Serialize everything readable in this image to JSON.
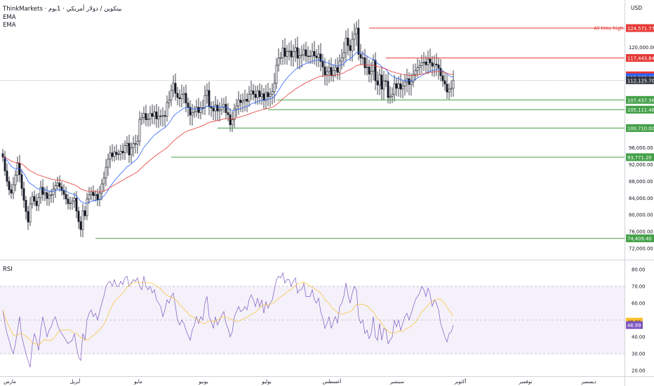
{
  "header": {
    "title": "ThinkMarkets · بيتكوين / دولار أمريكي · 1يوم",
    "ema1_label": "EMA",
    "ema2_label": "EMA",
    "currency": "USD"
  },
  "rsi_panel": {
    "label": "RSI"
  },
  "colors": {
    "up": "#131722",
    "down": "#131722",
    "ema_fast": "#2962ff",
    "ema_slow": "#e53935",
    "support": "#43a047",
    "resistance": "#e53935",
    "rsi_line": "#7e57c2",
    "rsi_ma": "#fbc02d",
    "rsi_band": "#ede7f6"
  },
  "chart_data": [
    {
      "type": "candlestick",
      "title": "ThinkMarkets · بيتكوين / دولار أمريكي · 1يوم",
      "ylim": [
        72000,
        130000
      ],
      "price_ticks": [
        72000,
        76000,
        80000,
        84000,
        88000,
        92000,
        96000,
        120000
      ],
      "price_tick_labels": [
        "72,000.00",
        "76,000.00",
        "80,000.00",
        "84,000.00",
        "88,000.00",
        "92,000.00",
        "96,000.00",
        "120,000.00"
      ],
      "month_labels": [
        "مارس",
        "أبريل",
        "مايو",
        "يونيو",
        "يوليو",
        "أغسطس",
        "سبتمبر",
        "أكتوبر",
        "نوفمبر",
        "ديسمبر"
      ],
      "month_positions": [
        0,
        31,
        61,
        92,
        122,
        153,
        184,
        214,
        245,
        275
      ],
      "grid": false,
      "closes": [
        93800,
        90500,
        88000,
        86000,
        85200,
        87200,
        89500,
        92300,
        89600,
        86300,
        83500,
        80800,
        78300,
        82600,
        84400,
        83300,
        82200,
        84100,
        86600,
        84900,
        85300,
        83900,
        84700,
        84800,
        86100,
        87000,
        87600,
        86700,
        85800,
        84900,
        83800,
        82700,
        82800,
        83300,
        84000,
        80900,
        78400,
        76500,
        81000,
        79800,
        83800,
        84800,
        85400,
        84600,
        84900,
        83600,
        85200,
        87400,
        88800,
        91400,
        93300,
        94800,
        93900,
        95000,
        94400,
        94500,
        95200,
        94800,
        96500,
        97100,
        94300,
        96000,
        97000,
        96900,
        97600,
        102800,
        103200,
        104200,
        102700,
        102900,
        104200,
        103500,
        104600,
        102900,
        103600,
        103500,
        103700,
        103500,
        106800,
        107400,
        109700,
        111400,
        109000,
        108000,
        107700,
        108700,
        109000,
        106700,
        105700,
        103800,
        104400,
        104700,
        105700,
        104400,
        105600,
        105600,
        108500,
        109700,
        105800,
        105500,
        104800,
        106200,
        104800,
        105100,
        105700,
        106400,
        104400,
        103900,
        101500,
        102700,
        105300,
        106000,
        107400,
        106800,
        107200,
        107600,
        107100,
        108800,
        109600,
        108800,
        108000,
        109600,
        108200,
        108900,
        107300,
        109200,
        108200,
        108800,
        109400,
        111400,
        115700,
        117500,
        117500,
        119800,
        117800,
        119000,
        119100,
        117700,
        119000,
        119900,
        117400,
        118000,
        118200,
        119400,
        117900,
        117800,
        117900,
        119000,
        117900,
        117500,
        118400,
        116600,
        115300,
        113400,
        114200,
        115200,
        113200,
        114400,
        115200,
        114000,
        116700,
        117500,
        118700,
        122200,
        120400,
        119200,
        121900,
        123200,
        124571,
        118300,
        117400,
        117500,
        115100,
        115300,
        113600,
        114300,
        116900,
        112000,
        111000,
        113400,
        110000,
        112000,
        111900,
        108000,
        108300,
        108800,
        111300,
        110200,
        111300,
        110000,
        110800,
        111700,
        112500,
        111100,
        111800,
        113500,
        114400,
        115100,
        115600,
        116300,
        116500,
        115800,
        117200,
        116300,
        115500,
        116000,
        115800,
        115000,
        113200,
        112000,
        111200,
        109300,
        110000,
        110200,
        112125
      ],
      "series": [
        {
          "name": "EMA",
          "values": []
        },
        {
          "name": "EMA",
          "values": []
        }
      ],
      "price_levels": [
        {
          "label": "124,571.77",
          "value": 124571.77,
          "kind": "resistance",
          "text": "All-time high"
        },
        {
          "label": "117,443.84",
          "value": 117443.84,
          "kind": "resistance",
          "text": ""
        },
        {
          "label": "107,437.56",
          "value": 107437.56,
          "kind": "support",
          "text": ""
        },
        {
          "label": "105,111.48",
          "value": 105111.48,
          "kind": "support",
          "text": ""
        },
        {
          "label": "100,710.00",
          "value": 100710.0,
          "kind": "support",
          "text": ""
        },
        {
          "label": "93,771.20",
          "value": 93771.2,
          "kind": "support",
          "text": ""
        },
        {
          "label": "74,409.40",
          "value": 74409.4,
          "kind": "support",
          "text": ""
        }
      ],
      "indicator_badges": [
        {
          "label": "113,302.48",
          "value": 113302.48,
          "color": "#e53935"
        },
        {
          "label": "112,823.83",
          "value": 112823.83,
          "color": "#2962ff"
        },
        {
          "label": "112,125.70",
          "value": 112125.7,
          "color": "#363a45"
        }
      ]
    },
    {
      "type": "line",
      "title": "RSI",
      "ylim": [
        20,
        82
      ],
      "ticks": [
        20,
        30,
        40,
        60,
        70,
        80
      ],
      "tick_labels": [
        "20.00",
        "30.00",
        "40.00",
        "60.00",
        "70.00",
        "80.00"
      ],
      "bands": [
        30,
        50,
        70
      ],
      "series": [
        {
          "name": "RSI",
          "values": [
            56,
            48,
            42,
            38,
            33,
            30,
            36,
            44,
            52,
            40,
            35,
            30,
            26,
            22,
            35,
            42,
            38,
            32,
            44,
            52,
            46,
            40,
            44,
            46,
            50,
            52,
            47,
            44,
            42,
            40,
            38,
            36,
            37,
            38,
            42,
            34,
            28,
            26,
            42,
            38,
            50,
            54,
            56,
            52,
            54,
            50,
            55,
            60,
            64,
            70,
            72,
            73,
            70,
            74,
            70,
            70,
            73,
            71,
            75,
            76,
            70,
            72,
            74,
            73,
            75,
            70,
            68,
            76,
            70,
            68,
            70,
            66,
            68,
            62,
            60,
            58,
            52,
            56,
            62,
            60,
            64,
            66,
            58,
            50,
            47,
            50,
            48,
            44,
            41,
            38,
            44,
            47,
            52,
            48,
            52,
            50,
            60,
            64,
            52,
            49,
            45,
            52,
            47,
            50,
            53,
            55,
            48,
            45,
            40,
            43,
            52,
            55,
            58,
            55,
            56,
            58,
            56,
            62,
            65,
            62,
            58,
            63,
            58,
            62,
            54,
            61,
            57,
            60,
            62,
            68,
            74,
            76,
            75,
            78,
            72,
            74,
            74,
            70,
            73,
            75,
            66,
            68,
            68,
            72,
            64,
            64,
            64,
            68,
            62,
            60,
            63,
            55,
            51,
            45,
            48,
            52,
            45,
            49,
            52,
            48,
            58,
            60,
            64,
            72,
            65,
            60,
            66,
            70,
            68,
            52,
            48,
            50,
            42,
            44,
            39,
            42,
            52,
            40,
            38,
            48,
            38,
            45,
            44,
            36,
            38,
            40,
            50,
            46,
            50,
            44,
            48,
            52,
            54,
            50,
            54,
            58,
            62,
            64,
            66,
            70,
            68,
            64,
            69,
            65,
            58,
            62,
            60,
            56,
            48,
            44,
            40,
            37,
            42,
            43,
            47
          ]
        },
        {
          "name": "RSI MA",
          "values": []
        }
      ],
      "value_badges": [
        {
          "label": "49.06",
          "value": 49.06,
          "color": "#fbc02d"
        },
        {
          "label": "46.99",
          "value": 46.99,
          "color": "#7e57c2"
        }
      ]
    }
  ]
}
